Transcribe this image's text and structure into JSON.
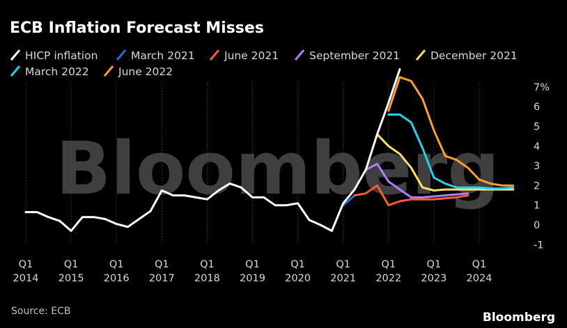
{
  "chart_data": {
    "type": "line",
    "title": "ECB Inflation Forecast Misses",
    "xlabel": "",
    "ylabel": "",
    "ylim": [
      -1,
      7
    ],
    "xlim": [
      2014.0,
      2024.83
    ],
    "y_ticks": [
      -1,
      0,
      1,
      2,
      3,
      4,
      5,
      6,
      7
    ],
    "y_tick_labels": [
      "-1",
      "0",
      "1",
      "2",
      "3",
      "4",
      "5",
      "6",
      "7%"
    ],
    "x_ticks": [
      {
        "year": 2014,
        "q": "Q1",
        "label": "2014"
      },
      {
        "year": 2015,
        "q": "Q1",
        "label": "2015"
      },
      {
        "year": 2016,
        "q": "Q1",
        "label": "2016"
      },
      {
        "year": 2017,
        "q": "Q1",
        "label": "2017"
      },
      {
        "year": 2018,
        "q": "Q1",
        "label": "2018"
      },
      {
        "year": 2019,
        "q": "Q1",
        "label": "2019"
      },
      {
        "year": 2020,
        "q": "Q1",
        "label": "2020"
      },
      {
        "year": 2021,
        "q": "Q1",
        "label": "2021"
      },
      {
        "year": 2022,
        "q": "Q1",
        "label": "2022"
      },
      {
        "year": 2023,
        "q": "Q1",
        "label": "2023"
      },
      {
        "year": 2024,
        "q": "Q1",
        "label": "2024"
      }
    ],
    "grid": "vertical dotted",
    "legend_position": "top",
    "series": [
      {
        "name": "HICP inflation",
        "color": "#ffffff",
        "x": [
          2014.0,
          2014.25,
          2014.5,
          2014.75,
          2015.0,
          2015.25,
          2015.5,
          2015.75,
          2016.0,
          2016.25,
          2016.5,
          2016.75,
          2017.0,
          2017.25,
          2017.5,
          2017.75,
          2018.0,
          2018.25,
          2018.5,
          2018.75,
          2019.0,
          2019.25,
          2019.5,
          2019.75,
          2020.0,
          2020.25,
          2020.5,
          2020.75,
          2021.0,
          2021.25,
          2021.5,
          2021.75,
          2022.0,
          2022.25
        ],
        "y": [
          0.65,
          0.65,
          0.4,
          0.2,
          -0.3,
          0.4,
          0.4,
          0.3,
          0.05,
          -0.1,
          0.3,
          0.7,
          1.75,
          1.5,
          1.5,
          1.4,
          1.3,
          1.75,
          2.1,
          1.9,
          1.4,
          1.4,
          1.0,
          1.0,
          1.1,
          0.25,
          0.0,
          -0.3,
          1.1,
          1.8,
          2.8,
          4.6,
          6.2,
          7.9
        ]
      },
      {
        "name": "March 2021",
        "color": "#1f6fe0",
        "x": [
          2021.0,
          2021.25
        ],
        "y": [
          1.0,
          1.5
        ]
      },
      {
        "name": "June 2021",
        "color": "#ff5a36",
        "x": [
          2021.25,
          2021.5,
          2021.75,
          2022.0,
          2022.25,
          2022.5,
          2022.75,
          2023.0,
          2023.25,
          2023.5,
          2023.75
        ],
        "y": [
          1.5,
          1.6,
          2.0,
          1.0,
          1.2,
          1.3,
          1.3,
          1.3,
          1.35,
          1.4,
          1.5
        ]
      },
      {
        "name": "September 2021",
        "color": "#b57bff",
        "x": [
          2021.5,
          2021.75,
          2022.0,
          2022.25,
          2022.5,
          2022.75,
          2023.0,
          2023.25,
          2023.5,
          2023.75
        ],
        "y": [
          2.8,
          3.1,
          2.2,
          1.8,
          1.4,
          1.4,
          1.45,
          1.5,
          1.55,
          1.6
        ]
      },
      {
        "name": "December 2021",
        "color": "#ffe066",
        "x": [
          2021.75,
          2022.0,
          2022.25,
          2022.5,
          2022.75,
          2023.0,
          2023.25,
          2023.5,
          2023.75,
          2024.0,
          2024.25,
          2024.5,
          2024.75
        ],
        "y": [
          4.6,
          4.0,
          3.6,
          2.9,
          1.9,
          1.75,
          1.8,
          1.8,
          1.8,
          1.8,
          1.8,
          1.8,
          1.8
        ]
      },
      {
        "name": "March 2022",
        "color": "#22d3ee",
        "x": [
          2022.0,
          2022.25,
          2022.5,
          2022.75,
          2023.0,
          2023.25,
          2023.5,
          2023.75,
          2024.0,
          2024.25,
          2024.5,
          2024.75
        ],
        "y": [
          5.6,
          5.6,
          5.2,
          3.9,
          2.4,
          2.1,
          1.9,
          1.9,
          1.9,
          1.85,
          1.85,
          1.9
        ]
      },
      {
        "name": "June 2022",
        "color": "#ff9e2c",
        "x": [
          2022.0,
          2022.25,
          2022.5,
          2022.75,
          2023.0,
          2023.25,
          2023.5,
          2023.75,
          2024.0,
          2024.25,
          2024.5,
          2024.75
        ],
        "y": [
          5.8,
          7.5,
          7.3,
          6.4,
          4.8,
          3.5,
          3.3,
          2.9,
          2.3,
          2.1,
          2.0,
          2.0
        ]
      }
    ]
  },
  "source": "Source: ECB",
  "brand": "Bloomberg",
  "watermark": "Bloomberg"
}
